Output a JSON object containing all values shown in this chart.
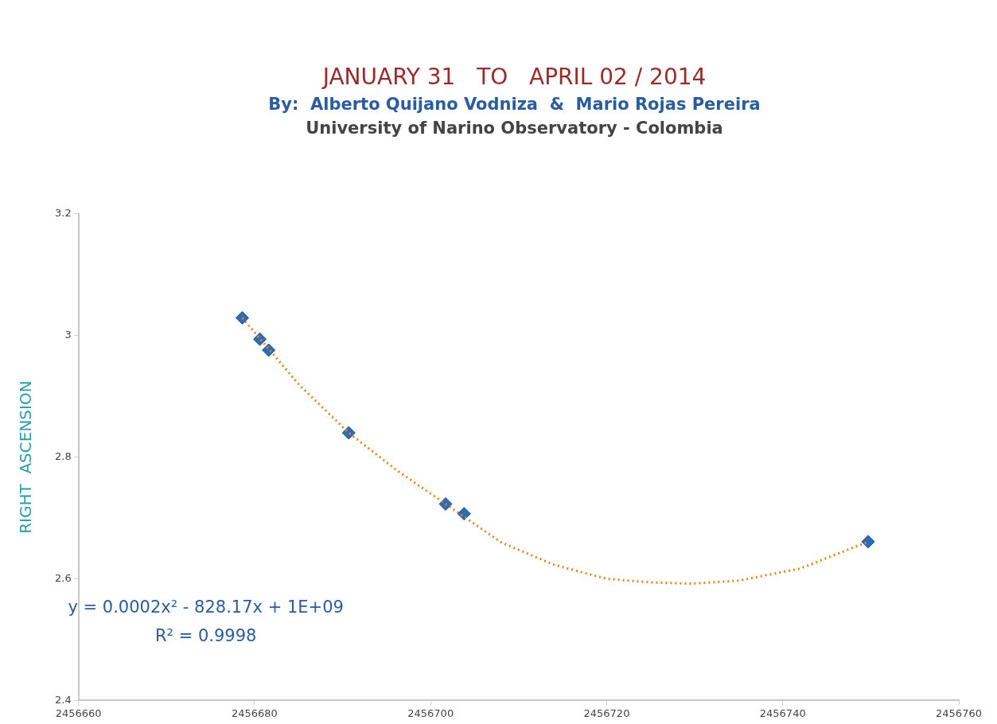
{
  "chart_data": {
    "type": "scatter",
    "title": "JANUARY 31   TO   APRIL 02 / 2014",
    "subtitle": "By:  Alberto Quijano Vodniza  &  Mario Rojas Pereira",
    "annotations": [
      "University of Narino Observatory - Colombia",
      "y = 0.0002x² - 828.17x + 1E+09",
      "R² = 0.9998"
    ],
    "ylabel": "RIGHT  ASCENSION",
    "xlim": [
      2456660,
      2456760
    ],
    "xticks": [
      2456660,
      2456680,
      2456700,
      2456720,
      2456740,
      2456760
    ],
    "ylim": [
      2.4,
      3.2
    ],
    "yticks": [
      2.4,
      2.6,
      2.8,
      3,
      3.2
    ],
    "grid": false,
    "legend": false,
    "series": [
      {
        "type": "line",
        "color": "#f07f1d",
        "line_style": "dotted",
        "marker": "none",
        "x": [
          2456678.6,
          2456685,
          2456690.7,
          2456696,
          2456701.7,
          2456708,
          2456714,
          2456720,
          2456725,
          2456729.7,
          2456735,
          2456742,
          2456749.7
        ],
        "values": [
          3.029,
          2.92,
          2.84,
          2.78,
          2.723,
          2.66,
          2.623,
          2.6,
          2.594,
          2.592,
          2.597,
          2.617,
          2.661
        ]
      },
      {
        "type": "scatter",
        "color": "#2e6db4",
        "marker": "diamond",
        "x": [
          2456678.6,
          2456680.6,
          2456681.6,
          2456690.7,
          2456701.7,
          2456703.8,
          2456749.7
        ],
        "values": [
          3.029,
          2.994,
          2.976,
          2.84,
          2.723,
          2.707,
          2.661
        ]
      }
    ]
  }
}
